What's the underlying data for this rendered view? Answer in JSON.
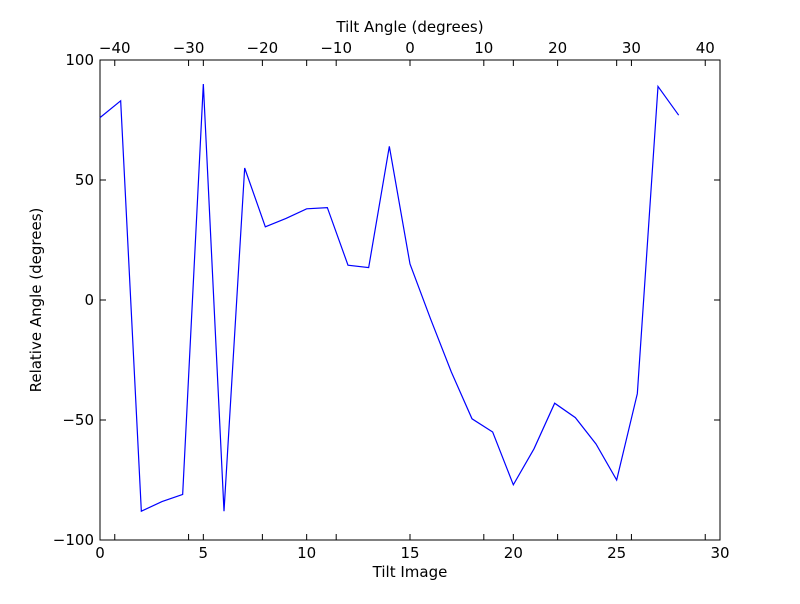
{
  "chart_data": {
    "type": "line",
    "title": "",
    "xlabel": "Tilt Image",
    "ylabel": "Relative Angle (degrees)",
    "x2label": "Tilt Angle (degrees)",
    "xlim": [
      0,
      30
    ],
    "ylim": [
      -100,
      100
    ],
    "x2lim": [
      -42,
      42
    ],
    "xticks": [
      0,
      5,
      10,
      15,
      20,
      25,
      30
    ],
    "yticks": [
      -100,
      -50,
      0,
      50,
      100
    ],
    "x2ticks": [
      -40,
      -30,
      -20,
      -10,
      0,
      10,
      20,
      30,
      40
    ],
    "xtick_labels": [
      "0",
      "5",
      "10",
      "15",
      "20",
      "25",
      "30"
    ],
    "ytick_labels": [
      "−100",
      "−50",
      "0",
      "50",
      "100"
    ],
    "x2tick_labels": [
      "−40",
      "−30",
      "−20",
      "−10",
      "0",
      "10",
      "20",
      "30",
      "40"
    ],
    "grid": false,
    "legend": "none",
    "line_color": "#0000ff",
    "series": [
      {
        "x": [
          0,
          1,
          2,
          3,
          4,
          5,
          6,
          7,
          8,
          9,
          10,
          11,
          12,
          13,
          14,
          15,
          16,
          17,
          18,
          19,
          20,
          21,
          22,
          23,
          24,
          25,
          26,
          27,
          28
        ],
        "values": [
          76,
          83,
          -88,
          -84,
          -81,
          90,
          -88,
          55,
          30.5,
          34,
          38,
          38.5,
          14.5,
          13.5,
          64,
          15,
          -8,
          -30,
          -49.5,
          -55,
          -77,
          -62,
          -43,
          -49,
          -60,
          -75,
          -39,
          89,
          77
        ]
      }
    ]
  }
}
